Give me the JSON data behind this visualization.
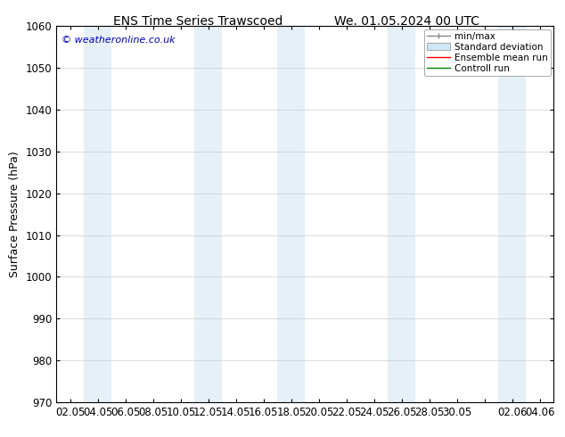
{
  "title": "ENS Time Series Trawscoed",
  "title_right": "We. 01.05.2024 00 UTC",
  "ylabel": "Surface Pressure (hPa)",
  "copyright": "© weatheronline.co.uk",
  "ylim": [
    970,
    1060
  ],
  "yticks": [
    970,
    980,
    990,
    1000,
    1010,
    1020,
    1030,
    1040,
    1050,
    1060
  ],
  "xtick_labels": [
    "02.05",
    "04.05",
    "06.05",
    "08.05",
    "10.05",
    "12.05",
    "14.05",
    "16.05",
    "18.05",
    "20.05",
    "22.05",
    "24.05",
    "26.05",
    "28.05",
    "30.05",
    "",
    "02.06",
    "04.06"
  ],
  "legend_entries": [
    "min/max",
    "Standard deviation",
    "Ensemble mean run",
    "Controll run"
  ],
  "band_color": "#daeaf5",
  "band_alpha": 0.7,
  "background_color": "#ffffff",
  "title_fontsize": 10,
  "axis_fontsize": 8.5,
  "copyright_color": "#0000bb"
}
